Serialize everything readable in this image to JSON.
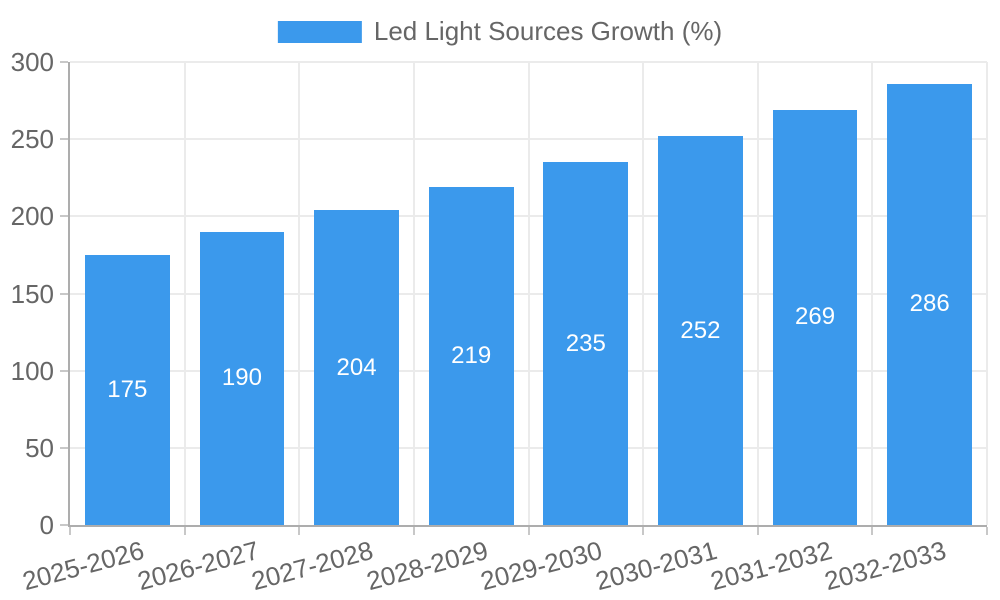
{
  "legend": {
    "label": "Led Light Sources Growth (%)"
  },
  "chart_data": {
    "type": "bar",
    "title": "",
    "legend_label": "Led Light Sources Growth (%)",
    "legend_position": "top-center",
    "categories": [
      "2025-2026",
      "2026-2027",
      "2027-2028",
      "2028-2029",
      "2029-2030",
      "2030-2031",
      "2031-2032",
      "2032-2033"
    ],
    "values": [
      175,
      190,
      204,
      219,
      235,
      252,
      269,
      286
    ],
    "xlabel": "",
    "ylabel": "",
    "ylim": [
      0,
      300
    ],
    "yticks": [
      0,
      50,
      100,
      150,
      200,
      250,
      300
    ],
    "grid": "horizontal-and-vertical",
    "value_labels": "inside-bar-centered",
    "x_label_rotation_deg": -15,
    "colors": {
      "bar": "#3B99EC",
      "grid": "#EBEBEB",
      "axis": "#ADADAD",
      "tick": "#C8C8C8",
      "tick_label": "#666666",
      "legend_label": "#666666",
      "value_label": "#FFFFFF",
      "background": "#FFFFFF"
    }
  }
}
